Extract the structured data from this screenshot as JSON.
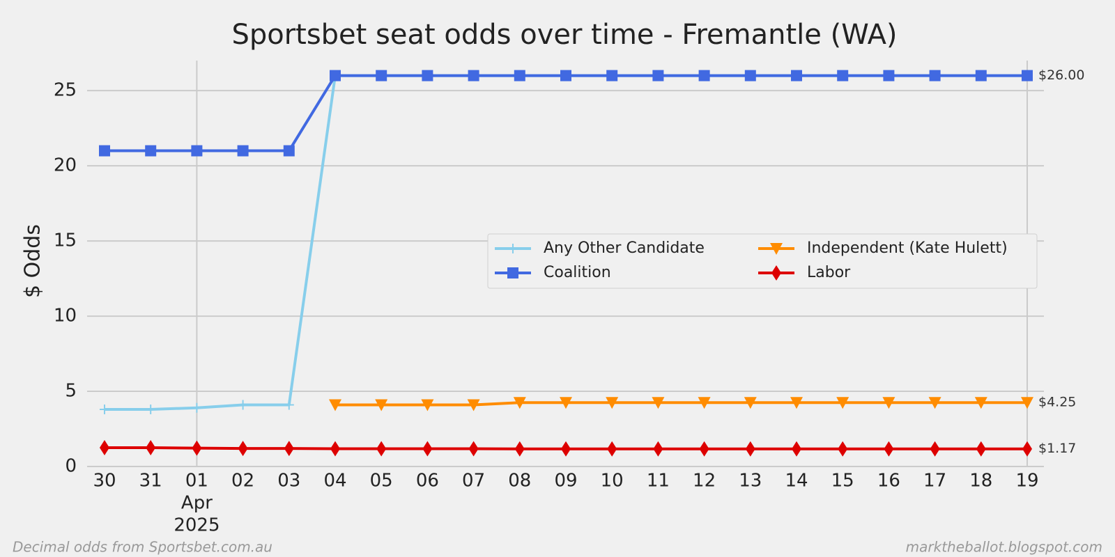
{
  "chart_data": {
    "type": "line",
    "title": "Sportsbet seat odds over time - Fremantle (WA)",
    "y_label": "$ Odds",
    "categories": [
      "30",
      "31",
      "01",
      "02",
      "03",
      "04",
      "05",
      "06",
      "07",
      "08",
      "09",
      "10",
      "11",
      "12",
      "13",
      "14",
      "15",
      "16",
      "17",
      "18",
      "19"
    ],
    "x_month_label": "Apr",
    "x_year_label": "2025",
    "ylim": [
      0,
      27
    ],
    "yticks": [
      0,
      5,
      10,
      15,
      20,
      25
    ],
    "grid": true,
    "legend": "right",
    "series": [
      {
        "name": "Any Other Candidate",
        "color": "#87ceeb",
        "marker": "plus",
        "values": [
          3.8,
          3.8,
          3.9,
          4.1,
          4.1,
          26,
          26,
          26,
          26,
          26,
          26,
          26,
          26,
          26,
          26,
          26,
          26,
          26,
          26,
          26,
          26
        ]
      },
      {
        "name": "Coalition",
        "color": "#4169e1",
        "marker": "square",
        "values": [
          21,
          21,
          21,
          21,
          21,
          26,
          26,
          26,
          26,
          26,
          26,
          26,
          26,
          26,
          26,
          26,
          26,
          26,
          26,
          26,
          26
        ],
        "value_labels": [
          null,
          null,
          null,
          null,
          null,
          null,
          null,
          null,
          null,
          null,
          null,
          null,
          null,
          null,
          null,
          null,
          null,
          null,
          null,
          null,
          "$26.00"
        ]
      },
      {
        "name": "Independent (Kate Hulett)",
        "color": "#ff8c00",
        "marker": "triangle-down",
        "values": [
          null,
          null,
          null,
          null,
          null,
          4.1,
          4.1,
          4.1,
          4.1,
          4.25,
          4.25,
          4.25,
          4.25,
          4.25,
          4.25,
          4.25,
          4.25,
          4.25,
          4.25,
          4.25,
          4.25
        ],
        "value_labels": [
          null,
          null,
          null,
          null,
          null,
          null,
          null,
          null,
          null,
          null,
          null,
          null,
          null,
          null,
          null,
          null,
          null,
          null,
          null,
          null,
          "$4.25"
        ]
      },
      {
        "name": "Labor",
        "color": "#dd0000",
        "marker": "diamond",
        "values": [
          1.25,
          1.25,
          1.22,
          1.2,
          1.2,
          1.18,
          1.18,
          1.18,
          1.18,
          1.17,
          1.17,
          1.17,
          1.17,
          1.17,
          1.17,
          1.17,
          1.17,
          1.17,
          1.17,
          1.17,
          1.17
        ],
        "value_labels": [
          null,
          null,
          null,
          null,
          null,
          null,
          null,
          null,
          null,
          null,
          null,
          null,
          null,
          null,
          null,
          null,
          null,
          null,
          null,
          null,
          "$1.17"
        ]
      }
    ],
    "footnote_left": "Decimal odds from Sportsbet.com.au",
    "footnote_right": "marktheballot.blogspot.com"
  }
}
